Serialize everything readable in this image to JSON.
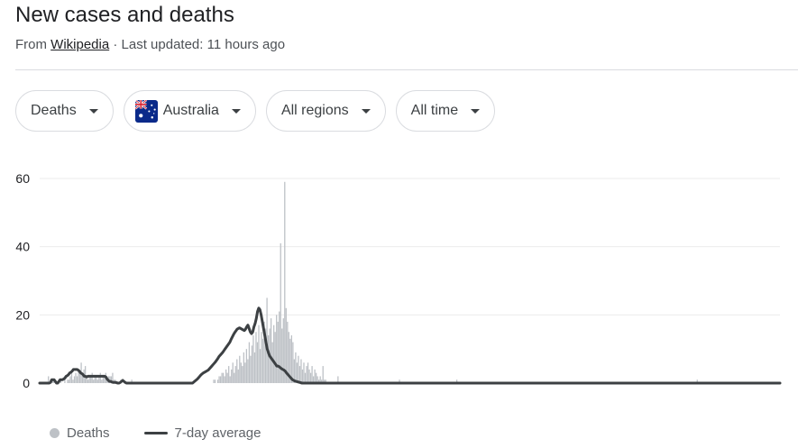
{
  "header": {
    "title": "New cases and deaths",
    "source_prefix": "From",
    "source_link": "Wikipedia",
    "updated": "· Last updated: 11 hours ago"
  },
  "filters": {
    "metric": "Deaths",
    "country": "Australia",
    "region": "All regions",
    "time": "All time"
  },
  "chart_data": {
    "type": "bar",
    "title": "",
    "xlabel": "",
    "ylabel": "",
    "ylim": [
      0,
      60
    ],
    "yticks": [
      "60",
      "40",
      "20",
      "0"
    ],
    "grid": true,
    "legend_position": "bottom-left",
    "series": [
      {
        "name": "Deaths",
        "style": "bar",
        "color": "#bdc1c6",
        "values": [
          0,
          0,
          0,
          0,
          0,
          0,
          2,
          0,
          0,
          1,
          1,
          0,
          0,
          0,
          0,
          1,
          0,
          0,
          2,
          0,
          1,
          1,
          2,
          3,
          1,
          2,
          3,
          2,
          4,
          3,
          6,
          3,
          4,
          5,
          2,
          1,
          2,
          2,
          3,
          1,
          2,
          2,
          1,
          2,
          3,
          1,
          2,
          2,
          3,
          1,
          2,
          2,
          2,
          3,
          1,
          1,
          0,
          0,
          0,
          1,
          0,
          0,
          0,
          0,
          0,
          0,
          0,
          1,
          0,
          0,
          0,
          0,
          0,
          0,
          0,
          0,
          0,
          0,
          0,
          0,
          0,
          0,
          0,
          0,
          0,
          0,
          0,
          0,
          0,
          0,
          0,
          0,
          0,
          0,
          0,
          0,
          0,
          0,
          0,
          0,
          0,
          0,
          0,
          0,
          0,
          0,
          0,
          0,
          0,
          0,
          0,
          0,
          0,
          0,
          0,
          0,
          0,
          0,
          0,
          0,
          0,
          0,
          0,
          0,
          0,
          0,
          0,
          1,
          1,
          0,
          1,
          2,
          2,
          3,
          3,
          2,
          4,
          3,
          5,
          2,
          4,
          6,
          3,
          5,
          7,
          4,
          8,
          6,
          5,
          9,
          6,
          10,
          7,
          12,
          8,
          11,
          14,
          9,
          15,
          12,
          17,
          10,
          15,
          13,
          18,
          16,
          25,
          14,
          16,
          19,
          12,
          17,
          15,
          20,
          18,
          21,
          41,
          16,
          19,
          59,
          22,
          18,
          15,
          13,
          14,
          12,
          7,
          9,
          6,
          8,
          5,
          7,
          4,
          6,
          3,
          5,
          6,
          4,
          3,
          5,
          2,
          4,
          3,
          2,
          1,
          2,
          1,
          5,
          1,
          1,
          0,
          0,
          0,
          0,
          0,
          0,
          0,
          0,
          2,
          0,
          0,
          0,
          0,
          0,
          0,
          0,
          0,
          0,
          0,
          0,
          0,
          0,
          0,
          0,
          0,
          0,
          0,
          0,
          0,
          0,
          0,
          0,
          0,
          0,
          0,
          0,
          0,
          0,
          0,
          0,
          0,
          0,
          0,
          0,
          0,
          0,
          0,
          0,
          0,
          0,
          0,
          0,
          0,
          1,
          0,
          0,
          0,
          0,
          0,
          0,
          0,
          0,
          0,
          0,
          0,
          0,
          0,
          0,
          0,
          0,
          0,
          0,
          0,
          0,
          0,
          0,
          0,
          0,
          0,
          0,
          0,
          0,
          0,
          0,
          0,
          0,
          0,
          0,
          0,
          0,
          0,
          0,
          0,
          0,
          0,
          1,
          0,
          0,
          0,
          0,
          0,
          0,
          0,
          0,
          0,
          0,
          0,
          0,
          0,
          0,
          0,
          0,
          0,
          0,
          0,
          0,
          0,
          0,
          0,
          0,
          0,
          0,
          0,
          0,
          0,
          0,
          0,
          0,
          0,
          0,
          0,
          0,
          0,
          0,
          0,
          0,
          0,
          0,
          0,
          0,
          0,
          0,
          0,
          0,
          0,
          0,
          0,
          0,
          0,
          0,
          0,
          0,
          0,
          0,
          0,
          0,
          0,
          0,
          0,
          0,
          0,
          0,
          0,
          0,
          0,
          0,
          0,
          0,
          0,
          0,
          0,
          0,
          0,
          0,
          0,
          0,
          0,
          0,
          0,
          0,
          0,
          0,
          0,
          0,
          0,
          0,
          0,
          0,
          0,
          0,
          0,
          0,
          0,
          0,
          0,
          0,
          0,
          0,
          0,
          0,
          0,
          0,
          0,
          0,
          0,
          0,
          0,
          0,
          0,
          0,
          0,
          0,
          0,
          0,
          0,
          0,
          0,
          0,
          0,
          0,
          0,
          0,
          0,
          0,
          0,
          0,
          0,
          0,
          0,
          0,
          0,
          0,
          0,
          0,
          0,
          0,
          0,
          0,
          0,
          0,
          0,
          0,
          0,
          0,
          0,
          0,
          0,
          0,
          0,
          0,
          0,
          0,
          0,
          0,
          0,
          0,
          0,
          0,
          0,
          0,
          0,
          0,
          0,
          0,
          0,
          0,
          0,
          0,
          0,
          0,
          0,
          1,
          0,
          0,
          0,
          0,
          0,
          0,
          0,
          0,
          0,
          0,
          0,
          0,
          0,
          0,
          0,
          0,
          0,
          0,
          0,
          0,
          0,
          0,
          0,
          0,
          0,
          0,
          0,
          0,
          0,
          0,
          0,
          0,
          0,
          0,
          0,
          0,
          0,
          0,
          0,
          0,
          0,
          0,
          0,
          0,
          0,
          0,
          0,
          0,
          0,
          0,
          0,
          0,
          0,
          0,
          0,
          0,
          0,
          0,
          0,
          0
        ]
      },
      {
        "name": "7-day average",
        "style": "line",
        "color": "#3c4043",
        "values": [
          0,
          0,
          0,
          0,
          0,
          0,
          0,
          0,
          0,
          0.2,
          1,
          1,
          1,
          0.5,
          0,
          0,
          0.5,
          1,
          1,
          1,
          1.2,
          1.5,
          2,
          2.2,
          2.5,
          3,
          3.2,
          3.5,
          4,
          4,
          4,
          4,
          3.8,
          3.5,
          3,
          2.8,
          2.5,
          2,
          2,
          1.8,
          2,
          2,
          2,
          2,
          2,
          2,
          2,
          2,
          2,
          2,
          2,
          2,
          2,
          2,
          2,
          1.8,
          1.2,
          0.8,
          0.5,
          0.5,
          0.3,
          0.2,
          0.2,
          0.2,
          0.1,
          0,
          0,
          0.2,
          0.5,
          0.8,
          0.5,
          0.2,
          0,
          0,
          0,
          0,
          0,
          0,
          0,
          0,
          0,
          0,
          0,
          0,
          0,
          0,
          0,
          0,
          0,
          0,
          0,
          0,
          0,
          0,
          0,
          0,
          0,
          0,
          0,
          0,
          0,
          0,
          0,
          0,
          0,
          0,
          0,
          0,
          0,
          0,
          0,
          0,
          0,
          0,
          0,
          0,
          0,
          0,
          0,
          0,
          0,
          0,
          0,
          0,
          0,
          0,
          0,
          0,
          0.3,
          0.6,
          0.9,
          1.2,
          1.6,
          2,
          2.4,
          2.7,
          3,
          3.2,
          3.4,
          3.6,
          3.8,
          4.2,
          4.6,
          5,
          5.4,
          5.8,
          6.2,
          6.7,
          7.2,
          7.8,
          8.2,
          8.6,
          9,
          9.5,
          10,
          10.5,
          11,
          11.5,
          12,
          12.8,
          13.5,
          14.2,
          14.8,
          15.3,
          15.8,
          16,
          16.2,
          16,
          15.8,
          15.6,
          15.4,
          15.8,
          16.5,
          17,
          16,
          15,
          14.5,
          15,
          16.5,
          17.5,
          19,
          21,
          22,
          21.5,
          20,
          18,
          16,
          14,
          12,
          10,
          9,
          8,
          7.5,
          7,
          6.5,
          6,
          5.5,
          5,
          5,
          4.8,
          4.5,
          4.2,
          4,
          3.8,
          3.5,
          3,
          2.6,
          2.2,
          1.8,
          1.4,
          1,
          0.8,
          0.6,
          0.5,
          0.4,
          0.3,
          0.2,
          0.1,
          0,
          0,
          0,
          0,
          0,
          0,
          0,
          0,
          0,
          0,
          0,
          0,
          0,
          0,
          0,
          0,
          0,
          0,
          0,
          0,
          0,
          0,
          0,
          0,
          0,
          0,
          0,
          0,
          0,
          0,
          0,
          0,
          0,
          0,
          0,
          0,
          0,
          0,
          0,
          0,
          0,
          0,
          0,
          0,
          0,
          0,
          0,
          0,
          0,
          0,
          0,
          0,
          0,
          0,
          0,
          0,
          0,
          0,
          0,
          0,
          0,
          0,
          0,
          0,
          0,
          0,
          0,
          0,
          0,
          0,
          0,
          0,
          0,
          0,
          0,
          0,
          0,
          0,
          0,
          0,
          0,
          0,
          0,
          0,
          0,
          0,
          0,
          0,
          0,
          0,
          0,
          0,
          0,
          0,
          0,
          0,
          0,
          0,
          0,
          0,
          0,
          0,
          0,
          0,
          0,
          0,
          0,
          0,
          0,
          0,
          0,
          0,
          0,
          0,
          0,
          0,
          0,
          0,
          0,
          0,
          0,
          0,
          0,
          0,
          0,
          0,
          0,
          0,
          0,
          0,
          0,
          0,
          0,
          0,
          0,
          0,
          0,
          0,
          0,
          0,
          0,
          0,
          0,
          0,
          0,
          0,
          0,
          0,
          0,
          0,
          0,
          0,
          0,
          0,
          0,
          0,
          0,
          0,
          0,
          0,
          0,
          0,
          0,
          0,
          0,
          0,
          0,
          0,
          0,
          0,
          0,
          0,
          0,
          0,
          0,
          0,
          0,
          0,
          0,
          0,
          0,
          0,
          0,
          0,
          0,
          0,
          0,
          0,
          0,
          0,
          0,
          0,
          0,
          0,
          0,
          0,
          0,
          0,
          0,
          0,
          0,
          0,
          0,
          0,
          0,
          0,
          0,
          0,
          0,
          0,
          0,
          0,
          0,
          0,
          0,
          0,
          0,
          0,
          0,
          0,
          0,
          0,
          0,
          0,
          0,
          0,
          0,
          0,
          0,
          0,
          0,
          0,
          0,
          0,
          0,
          0,
          0,
          0,
          0,
          0,
          0,
          0,
          0,
          0,
          0,
          0,
          0,
          0,
          0,
          0,
          0,
          0,
          0,
          0,
          0,
          0,
          0,
          0,
          0,
          0,
          0,
          0,
          0,
          0,
          0,
          0,
          0,
          0,
          0,
          0,
          0,
          0,
          0,
          0,
          0,
          0,
          0,
          0,
          0,
          0,
          0,
          0,
          0,
          0,
          0,
          0,
          0,
          0,
          0,
          0,
          0,
          0,
          0,
          0,
          0,
          0,
          0,
          0,
          0,
          0,
          0,
          0,
          0,
          0,
          0,
          0,
          0,
          0,
          0,
          0,
          0,
          0,
          0,
          0,
          0,
          0,
          0,
          0,
          0,
          0,
          0,
          0,
          0,
          0,
          0,
          0,
          0,
          0,
          0,
          0,
          0,
          0,
          0,
          0,
          0,
          0,
          0,
          0,
          0,
          0,
          0,
          0,
          0,
          0,
          0,
          0,
          0,
          0,
          0,
          0,
          0,
          0,
          0,
          0,
          0,
          0,
          0,
          0,
          0,
          0,
          0,
          0,
          0,
          0,
          0,
          0,
          0,
          0,
          0,
          0,
          0,
          0,
          0,
          0,
          0,
          0,
          0,
          0,
          0,
          0,
          0,
          0,
          0,
          0,
          0,
          0,
          0,
          0,
          0,
          0,
          0,
          0,
          0,
          0,
          0,
          0,
          0,
          0
        ]
      }
    ]
  },
  "legend": {
    "deaths_label": "Deaths",
    "avg_label": "7-day average"
  },
  "colors": {
    "bar": "#bdc1c6",
    "line": "#3c4043",
    "grid": "#ebebeb"
  }
}
